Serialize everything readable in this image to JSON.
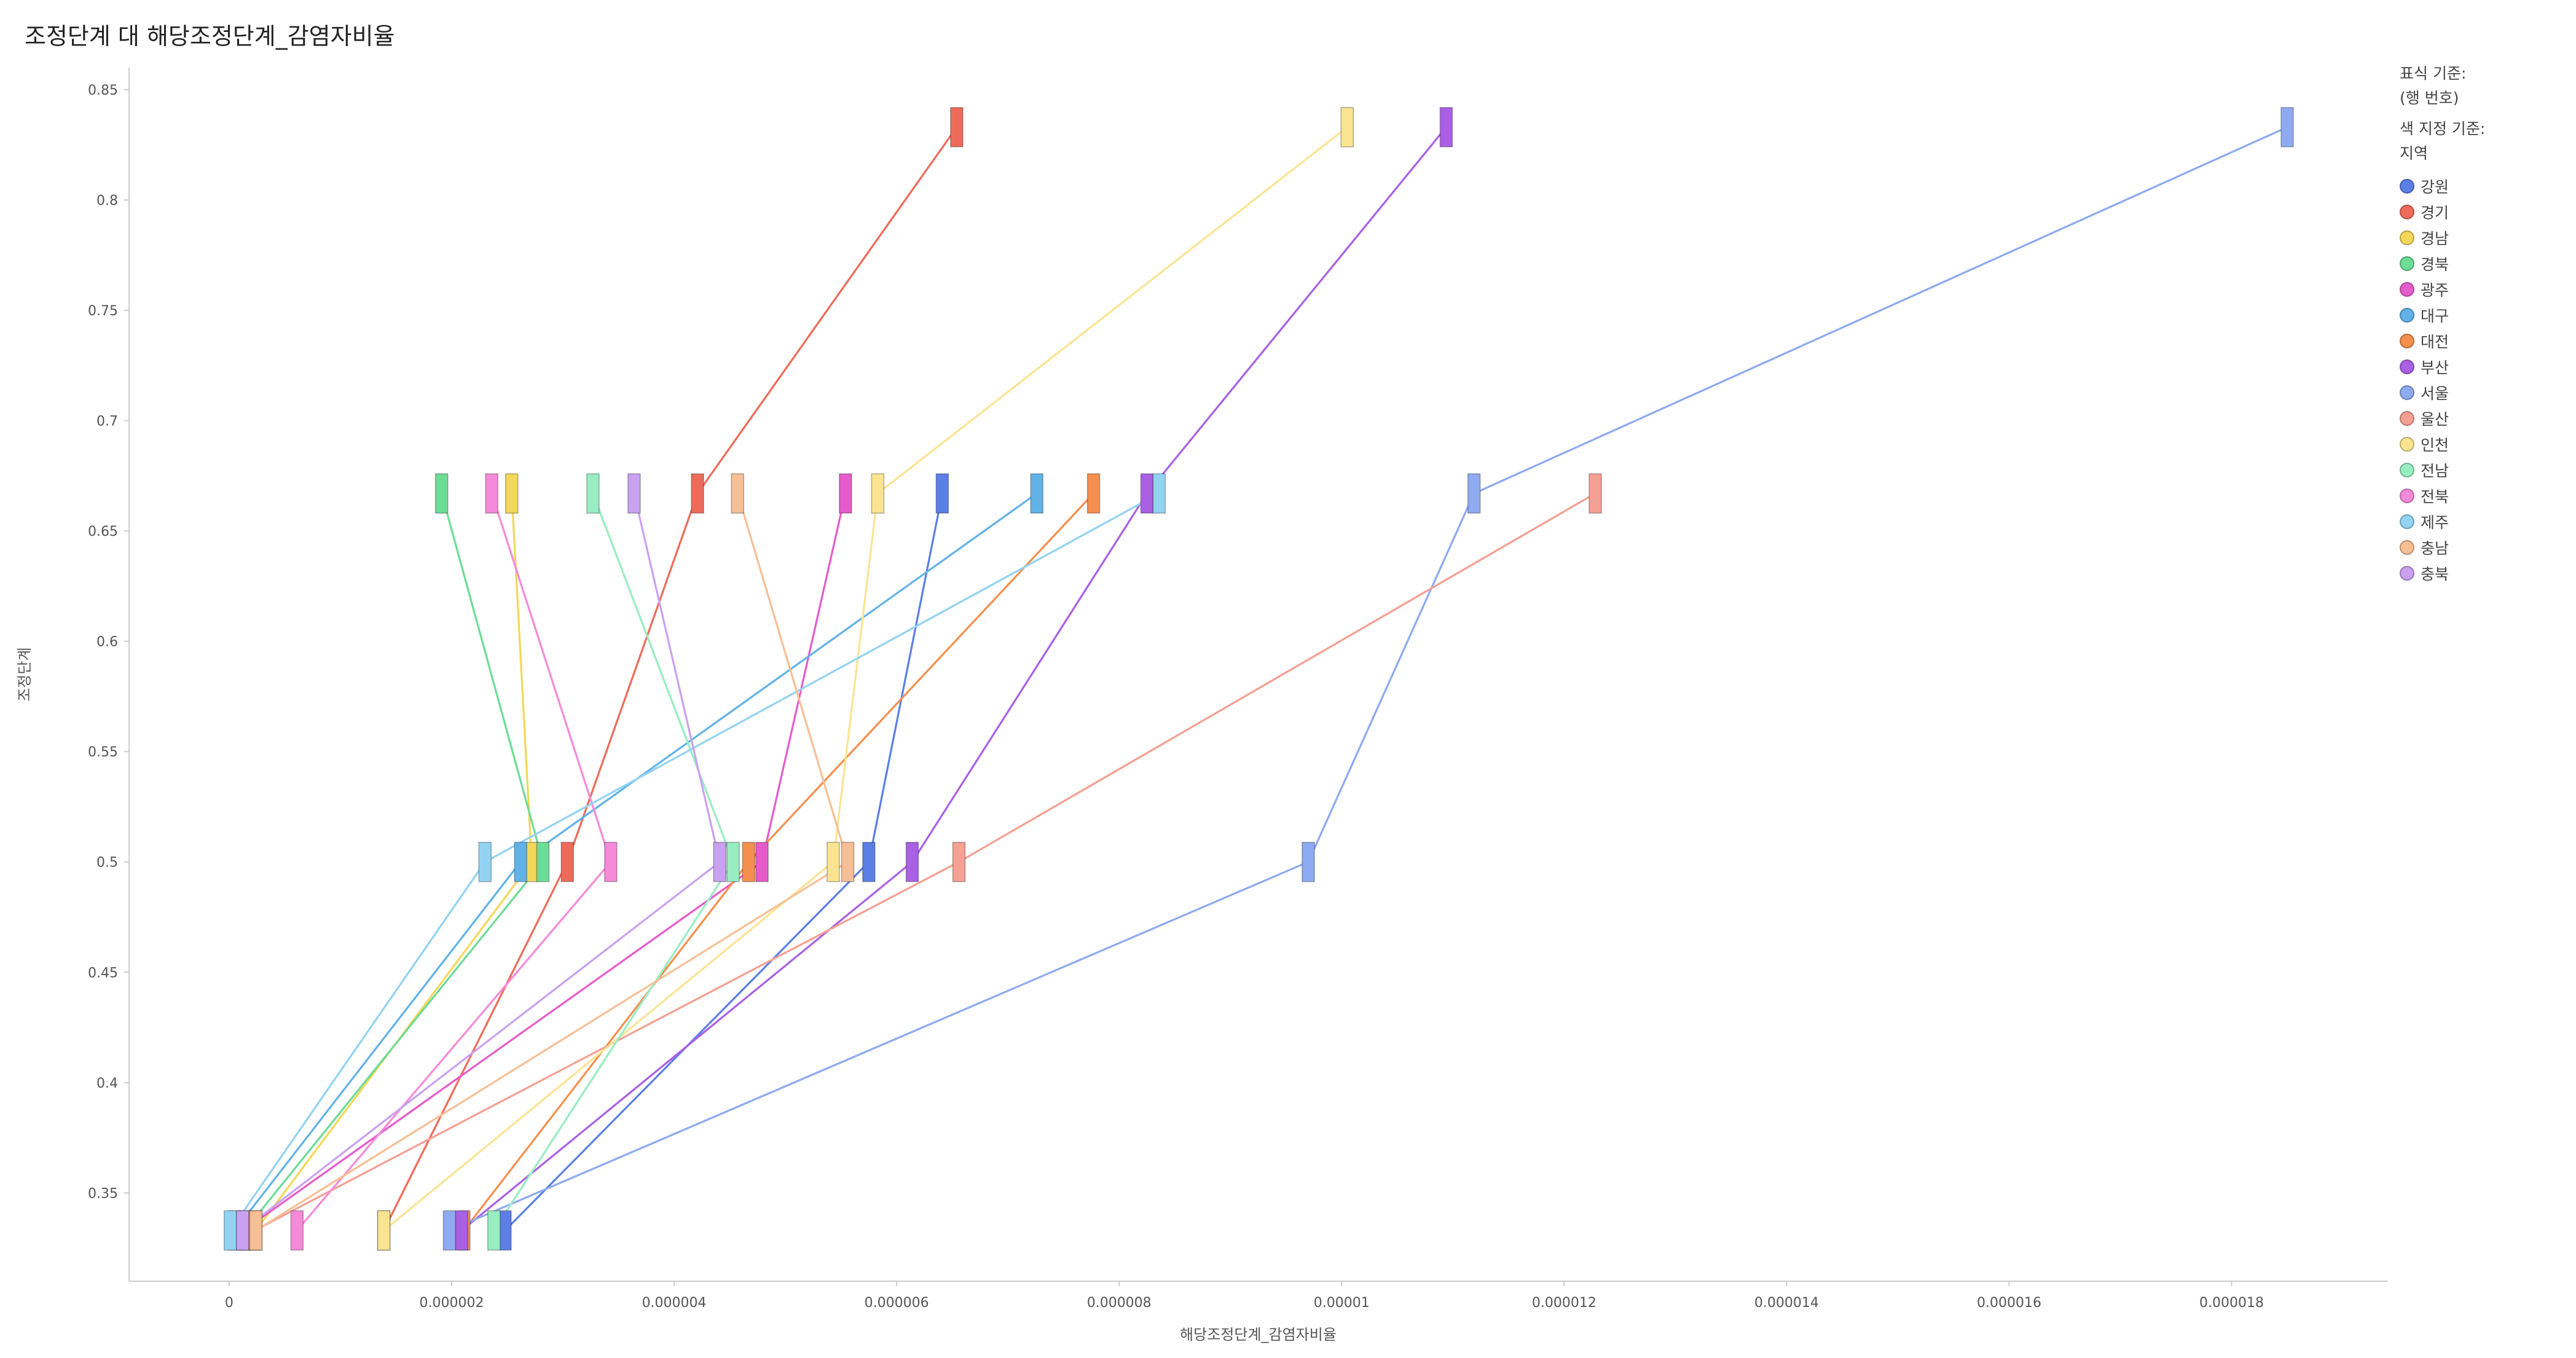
{
  "title": "조정단계 대 해당조정단계_감염자비율",
  "legend": {
    "mark_by_label": "표식 기준:",
    "mark_by_value": "(행 번호)",
    "color_by_label": "색 지정 기준:",
    "color_by_value": "지역"
  },
  "chart_data": {
    "type": "line",
    "title": "조정단계 대 해당조정단계_감염자비율",
    "xlabel": "해당조정단계_감염자비율",
    "ylabel": "조정단계",
    "xlim": [
      -9e-07,
      1.94e-05
    ],
    "ylim": [
      0.31,
      0.86
    ],
    "xticks": [
      0,
      2e-06,
      4e-06,
      6e-06,
      8e-06,
      1e-05,
      1.2e-05,
      1.4e-05,
      1.6e-05,
      1.8e-05
    ],
    "xtick_labels": [
      "0",
      "0.000002",
      "0.000004",
      "0.000006",
      "0.000008",
      "0.00001",
      "0.000012",
      "0.000014",
      "0.000016",
      "0.000018"
    ],
    "yticks": [
      0.35,
      0.4,
      0.45,
      0.5,
      0.55,
      0.6,
      0.65,
      0.7,
      0.75,
      0.8,
      0.85
    ],
    "ytick_labels": [
      "0.35",
      "0.4",
      "0.45",
      "0.5",
      "0.55",
      "0.6",
      "0.65",
      "0.7",
      "0.75",
      "0.8",
      "0.85"
    ],
    "grid": false,
    "legend_position": "right",
    "series": [
      {
        "name": "강원",
        "color": "#5b7fe6",
        "points": [
          [
            2.48e-06,
            0.333
          ],
          [
            5.75e-06,
            0.5
          ],
          [
            6.41e-06,
            0.667
          ]
        ]
      },
      {
        "name": "경기",
        "color": "#ee6b5a",
        "points": [
          [
            1.39e-06,
            0.333
          ],
          [
            3.04e-06,
            0.5
          ],
          [
            4.21e-06,
            0.667
          ],
          [
            6.54e-06,
            0.833
          ]
        ]
      },
      {
        "name": "경남",
        "color": "#f3d759",
        "points": [
          [
            2.4e-07,
            0.333
          ],
          [
            2.72e-06,
            0.5
          ],
          [
            2.54e-06,
            0.667
          ]
        ]
      },
      {
        "name": "경북",
        "color": "#6ddc96",
        "points": [
          [
            1.4e-07,
            0.333
          ],
          [
            2.82e-06,
            0.5
          ],
          [
            1.91e-06,
            0.667
          ]
        ]
      },
      {
        "name": "광주",
        "color": "#e65bcb",
        "points": [
          [
            1.3e-07,
            0.333
          ],
          [
            4.79e-06,
            0.5
          ],
          [
            5.54e-06,
            0.667
          ]
        ]
      },
      {
        "name": "대구",
        "color": "#62b2e8",
        "points": [
          [
            5e-08,
            0.333
          ],
          [
            2.62e-06,
            0.5
          ],
          [
            7.26e-06,
            0.667
          ]
        ]
      },
      {
        "name": "대전",
        "color": "#f58f4e",
        "points": [
          [
            2.11e-06,
            0.333
          ],
          [
            4.67e-06,
            0.5
          ],
          [
            7.77e-06,
            0.667
          ]
        ]
      },
      {
        "name": "부산",
        "color": "#a960e3",
        "points": [
          [
            2.09e-06,
            0.333
          ],
          [
            6.14e-06,
            0.5
          ],
          [
            8.25e-06,
            0.667
          ],
          [
            1.094e-05,
            0.833
          ]
        ]
      },
      {
        "name": "서울",
        "color": "#8eaaf0",
        "points": [
          [
            1.98e-06,
            0.333
          ],
          [
            9.7e-06,
            0.5
          ],
          [
            1.119e-05,
            0.667
          ],
          [
            1.85e-05,
            0.833
          ]
        ]
      },
      {
        "name": "울산",
        "color": "#f4a093",
        "points": [
          [
            2.3e-07,
            0.333
          ],
          [
            6.56e-06,
            0.5
          ],
          [
            1.228e-05,
            0.667
          ]
        ]
      },
      {
        "name": "인천",
        "color": "#fae491",
        "points": [
          [
            1.39e-06,
            0.333
          ],
          [
            5.43e-06,
            0.5
          ],
          [
            5.83e-06,
            0.667
          ],
          [
            1.005e-05,
            0.833
          ]
        ]
      },
      {
        "name": "전남",
        "color": "#98edc1",
        "points": [
          [
            2.38e-06,
            0.333
          ],
          [
            4.53e-06,
            0.5
          ],
          [
            3.27e-06,
            0.667
          ]
        ]
      },
      {
        "name": "전북",
        "color": "#f58ad9",
        "points": [
          [
            6.1e-07,
            0.333
          ],
          [
            3.43e-06,
            0.5
          ],
          [
            2.36e-06,
            0.667
          ]
        ]
      },
      {
        "name": "제주",
        "color": "#93d3f2",
        "points": [
          [
            1e-08,
            0.333
          ],
          [
            2.3e-06,
            0.5
          ],
          [
            8.36e-06,
            0.667
          ]
        ]
      },
      {
        "name": "충남",
        "color": "#f7bf95",
        "points": [
          [
            2.4e-07,
            0.333
          ],
          [
            5.56e-06,
            0.5
          ],
          [
            4.57e-06,
            0.667
          ]
        ]
      },
      {
        "name": "충북",
        "color": "#c9a1f0",
        "points": [
          [
            1.2e-07,
            0.333
          ],
          [
            4.41e-06,
            0.5
          ],
          [
            3.64e-06,
            0.667
          ]
        ]
      }
    ]
  }
}
